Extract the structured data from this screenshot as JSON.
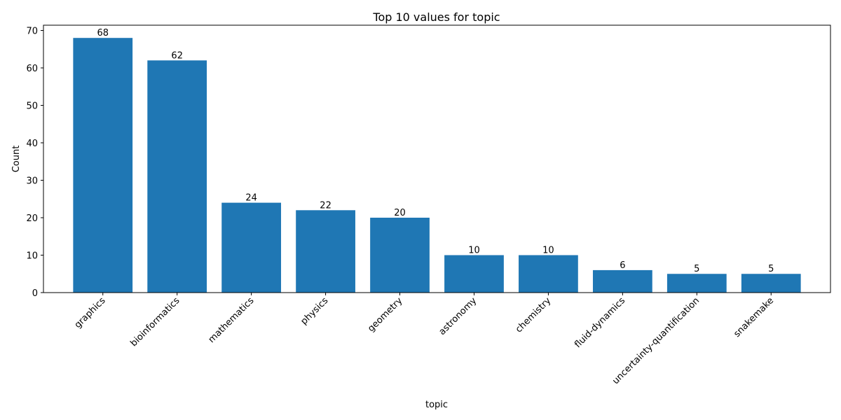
{
  "chart_data": {
    "type": "bar",
    "title": "Top 10 values for topic",
    "xlabel": "topic",
    "ylabel": "Count",
    "categories": [
      "graphics",
      "bioinformatics",
      "mathematics",
      "physics",
      "geometry",
      "astronomy",
      "chemistry",
      "fluid-dynamics",
      "uncertainty-quantification",
      "snakemake"
    ],
    "values": [
      68,
      62,
      24,
      22,
      20,
      10,
      10,
      6,
      5,
      5
    ],
    "ylim": [
      0,
      71.4
    ],
    "yticks": [
      0,
      10,
      20,
      30,
      40,
      50,
      60,
      70
    ],
    "bar_color": "#1f77b4",
    "grid": false,
    "legend": "none"
  }
}
